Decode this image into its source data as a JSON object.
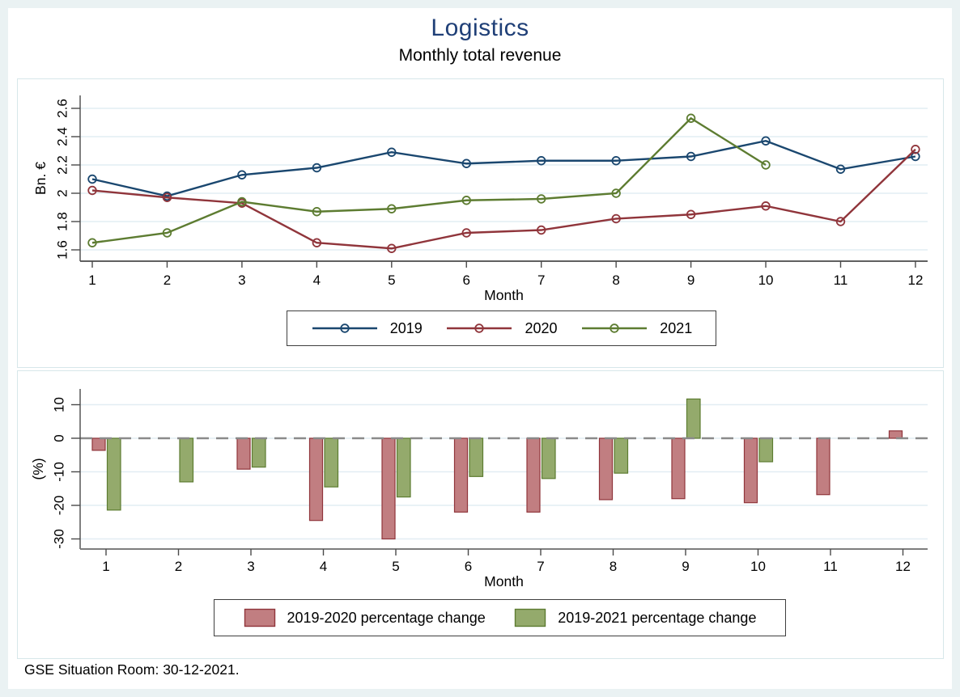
{
  "header": {
    "title": "Logistics",
    "subtitle": "Monthly total revenue"
  },
  "footer": {
    "note": "GSE Situation Room: 30-12-2021."
  },
  "colors": {
    "background_frame": "#eaf2f3",
    "panel_border": "#d7e7ea",
    "grid": "#e2edf3",
    "axis": "#4a4a4a",
    "zero_line": "#8a8a8a",
    "title": "#1f3f77",
    "navy": "#1a476f",
    "maroon": "#90353b",
    "olive": "#5d7c31",
    "bar_red_fill": "#c17e81",
    "bar_green_fill": "#94aa6c"
  },
  "chart_data": [
    {
      "type": "line",
      "title": "Monthly total revenue",
      "xlabel": "Month",
      "ylabel": "Bn. €",
      "x": [
        1,
        2,
        3,
        4,
        5,
        6,
        7,
        8,
        9,
        10,
        11,
        12
      ],
      "yticks": [
        2.6,
        2.4,
        2.2,
        2,
        1.8,
        1.6
      ],
      "ylim": [
        1.52,
        2.69
      ],
      "grid": true,
      "legend_position": "bottom",
      "marker": "hollow-circle",
      "series": [
        {
          "name": "2019",
          "color": "#1a476f",
          "values": [
            2.1,
            1.98,
            2.13,
            2.18,
            2.29,
            2.21,
            2.23,
            2.23,
            2.26,
            2.37,
            2.17,
            2.26
          ]
        },
        {
          "name": "2020",
          "color": "#90353b",
          "values": [
            2.02,
            1.97,
            1.93,
            1.65,
            1.61,
            1.72,
            1.74,
            1.82,
            1.85,
            1.91,
            1.8,
            2.31
          ]
        },
        {
          "name": "2021",
          "color": "#5d7c31",
          "values": [
            1.65,
            1.72,
            1.94,
            1.87,
            1.89,
            1.95,
            1.96,
            2.0,
            2.53,
            2.2,
            null,
            null
          ]
        }
      ]
    },
    {
      "type": "bar",
      "xlabel": "Month",
      "ylabel": "(%)",
      "categories": [
        1,
        2,
        3,
        4,
        5,
        6,
        7,
        8,
        9,
        10,
        11,
        12
      ],
      "yticks": [
        10,
        0,
        -10,
        -20,
        -30
      ],
      "ylim": [
        -33,
        15
      ],
      "grid": true,
      "zero_line": "dashed",
      "legend_position": "bottom",
      "series": [
        {
          "name": "2019-2020 percentage change",
          "fill": "#c17e81",
          "stroke": "#90353b",
          "values": [
            -3.6,
            0,
            -9.2,
            -24.5,
            -30,
            -22,
            -22,
            -18.3,
            -18,
            -19.2,
            -16.8,
            2.2
          ]
        },
        {
          "name": "2019-2021 percentage change",
          "fill": "#94aa6c",
          "stroke": "#5d7c31",
          "values": [
            -21.4,
            -13,
            -8.6,
            -14.5,
            -17.5,
            -11.4,
            -12,
            -10.4,
            11.7,
            -7,
            null,
            null
          ]
        }
      ]
    }
  ]
}
